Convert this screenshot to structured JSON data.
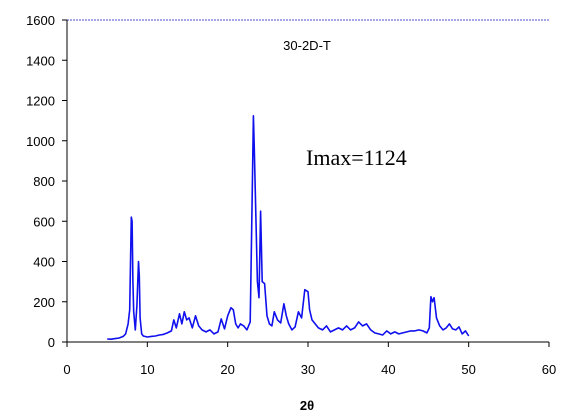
{
  "chart_data": {
    "type": "line",
    "title": "30-2D-T",
    "xlabel": "2θ",
    "ylabel": "",
    "xlim": [
      0,
      60
    ],
    "ylim": [
      0,
      1600
    ],
    "xticks": [
      0,
      10,
      20,
      30,
      40,
      50,
      60
    ],
    "yticks": [
      0,
      200,
      400,
      600,
      800,
      1000,
      1200,
      1400,
      1600
    ],
    "grid": false,
    "legend": "none",
    "annotation": "Imax=1124",
    "colors": {
      "series": "#1010ee",
      "axis": "#000000",
      "plot_border": "#8888dd"
    },
    "series": [
      {
        "x": [
          5.0,
          5.5,
          6.0,
          6.5,
          7.0,
          7.3,
          7.6,
          7.8,
          8.0,
          8.1,
          8.2,
          8.3,
          8.5,
          8.7,
          8.9,
          9.0,
          9.1,
          9.3,
          9.5,
          10.0,
          10.5,
          11.0,
          11.5,
          12.0,
          12.5,
          13.0,
          13.3,
          13.6,
          14.0,
          14.3,
          14.6,
          14.9,
          15.2,
          15.6,
          16.0,
          16.4,
          16.8,
          17.3,
          17.8,
          18.3,
          18.8,
          19.2,
          19.6,
          20.0,
          20.4,
          20.7,
          21.0,
          21.3,
          21.6,
          22.0,
          22.4,
          22.8,
          23.0,
          23.2,
          23.3,
          23.5,
          23.7,
          23.9,
          24.1,
          24.3,
          24.6,
          24.9,
          25.2,
          25.5,
          25.8,
          26.2,
          26.6,
          27.0,
          27.3,
          27.6,
          28.0,
          28.4,
          28.8,
          29.2,
          29.6,
          30.0,
          30.2,
          30.5,
          30.9,
          31.3,
          31.8,
          32.3,
          32.8,
          33.3,
          33.8,
          34.3,
          34.8,
          35.3,
          35.8,
          36.3,
          36.8,
          37.3,
          37.8,
          38.3,
          38.8,
          39.3,
          39.8,
          40.3,
          40.8,
          41.3,
          41.8,
          42.3,
          42.8,
          43.3,
          43.8,
          44.3,
          44.8,
          45.1,
          45.3,
          45.5,
          45.7,
          46.0,
          46.4,
          46.8,
          47.2,
          47.6,
          48.0,
          48.4,
          48.8,
          49.2,
          49.6,
          50.0
        ],
        "y": [
          15,
          14,
          17,
          20,
          28,
          40,
          90,
          160,
          620,
          600,
          300,
          150,
          60,
          180,
          400,
          330,
          120,
          40,
          30,
          25,
          28,
          30,
          35,
          38,
          45,
          55,
          110,
          70,
          140,
          90,
          150,
          110,
          120,
          70,
          130,
          80,
          60,
          50,
          60,
          40,
          50,
          115,
          65,
          130,
          170,
          160,
          90,
          70,
          90,
          80,
          60,
          100,
          600,
          1124,
          980,
          640,
          300,
          220,
          650,
          300,
          290,
          130,
          90,
          80,
          150,
          110,
          95,
          190,
          130,
          90,
          60,
          75,
          150,
          120,
          260,
          250,
          160,
          110,
          90,
          70,
          60,
          80,
          50,
          60,
          70,
          60,
          80,
          60,
          70,
          100,
          80,
          90,
          60,
          45,
          40,
          35,
          55,
          40,
          50,
          40,
          45,
          50,
          55,
          55,
          60,
          55,
          45,
          70,
          225,
          200,
          220,
          120,
          80,
          60,
          70,
          90,
          65,
          60,
          75,
          40,
          55,
          30
        ]
      }
    ]
  }
}
